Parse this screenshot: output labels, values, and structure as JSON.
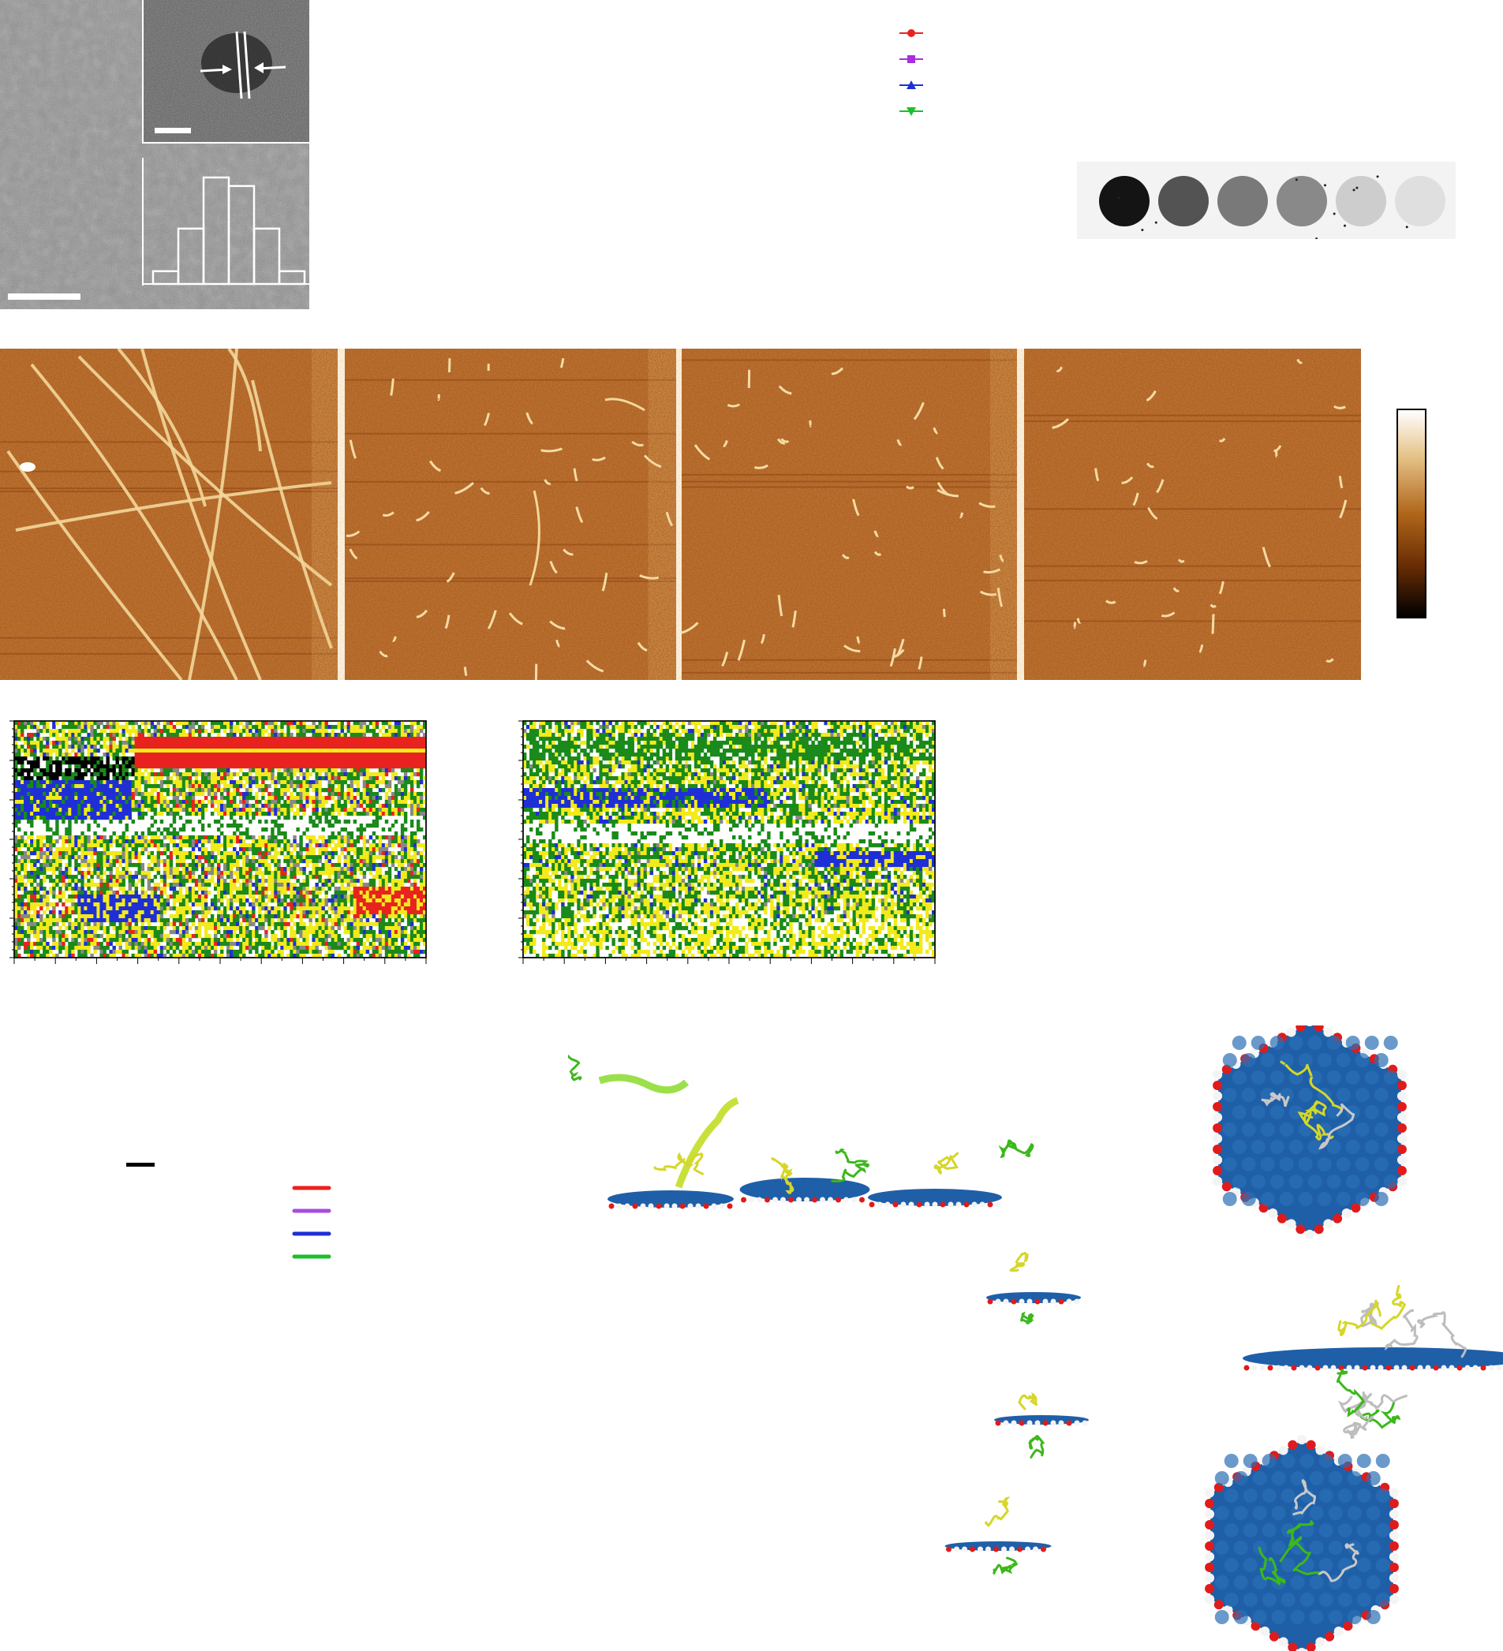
{
  "figure": {
    "tem": {
      "inset_histogram": {
        "bars": [
          0.12,
          0.52,
          1.0,
          0.92,
          0.52,
          0.12
        ]
      }
    },
    "legend_markers": [
      {
        "marker": "circle",
        "color": "#e8231f"
      },
      {
        "marker": "square",
        "color": "#a630e0"
      },
      {
        "marker": "triangle-up",
        "color": "#1f2fd6"
      },
      {
        "marker": "triangle-down",
        "color": "#1bbf2b"
      }
    ],
    "dot_blot": {
      "spot_intensities": [
        1.0,
        0.72,
        0.55,
        0.48,
        0.18,
        0.1
      ]
    },
    "afm": {
      "panel_count": 4,
      "colorbar_colors": [
        "#ffffff",
        "#e6c48a",
        "#b0661a",
        "#6a2d05",
        "#000000"
      ]
    },
    "secondary_structure": {
      "panels": 2,
      "colors": {
        "helix": "#e8231f",
        "strand": "#1f2fd6",
        "turn": "#1a8a1a",
        "bend": "#f2ea1a",
        "coil": "#ffffff",
        "bridge": "#000000",
        "3-10": "#888888"
      }
    },
    "line_legend": [
      {
        "color": "#e8231f"
      },
      {
        "color": "#a64ce0"
      },
      {
        "color": "#1f2fd6"
      },
      {
        "color": "#1bbf2b"
      }
    ],
    "colors": {
      "sheet_blue": "#1f5fa8",
      "oxygen_red": "#e01b1b",
      "hydrogen_white": "#f4f4f4",
      "peptide_yellow": "#d6d628",
      "peptide_green": "#3cb81c"
    }
  }
}
